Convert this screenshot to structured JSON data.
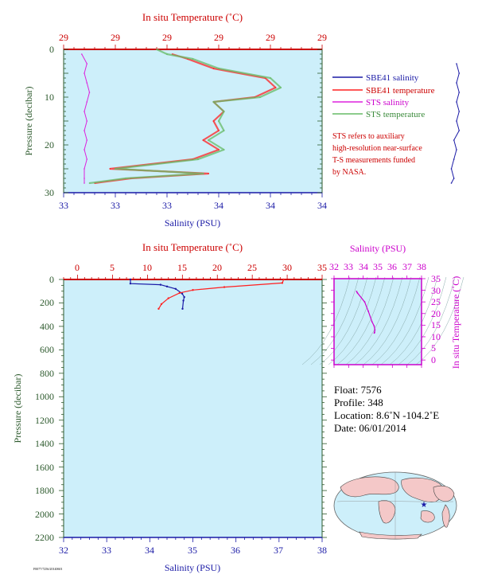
{
  "colors": {
    "plot_bg": "#cdeffa",
    "salinity_axis": "#1a1aa6",
    "temperature_axis": "#cc0000",
    "pressure_axis": "#2d5a2d",
    "inset_axis": "#cc00cc",
    "sbe_salinity": "#1a1aa6",
    "sbe_temperature": "#ff2020",
    "sts_salinity": "#dd22dd",
    "sts_temperature": "#66bb66"
  },
  "top": {
    "xlabel_top": "In situ Temperature (˚C)",
    "xlabel_bottom": "Salinity (PSU)",
    "ylabel": "Pressure (decibar)",
    "temp_ticks": [
      "29",
      "29",
      "29",
      "29",
      "29",
      "29"
    ],
    "sal_ticks": [
      "33",
      "33",
      "33",
      "34",
      "34",
      "34"
    ],
    "pres_ticks": [
      "0",
      "10",
      "20",
      "30"
    ],
    "legend": [
      {
        "name": "SBE41 salinity",
        "color": "#1a1aa6"
      },
      {
        "name": "SBE41 temperature",
        "color": "#ff2020"
      },
      {
        "name": "STS salinity",
        "color": "#dd22dd"
      },
      {
        "name": "STS temperature",
        "color": "#66bb66"
      }
    ],
    "note": [
      "STS refers to auxiliary",
      "high-resolution near-surface",
      "T-S measurements funded",
      "by NASA."
    ]
  },
  "bottom": {
    "xlabel_top": "In situ Temperature (˚C)",
    "xlabel_bottom": "Salinity (PSU)",
    "ylabel": "Pressure (decibar)",
    "temp_ticks": [
      "0",
      "5",
      "10",
      "15",
      "20",
      "25",
      "30",
      "35"
    ],
    "sal_ticks": [
      "32",
      "33",
      "34",
      "35",
      "36",
      "37",
      "38"
    ],
    "pres_ticks": [
      "0",
      "200",
      "400",
      "600",
      "800",
      "1000",
      "1200",
      "1400",
      "1600",
      "1800",
      "2000",
      "2200"
    ]
  },
  "inset": {
    "xlabel": "Salinity (PSU)",
    "ylabel": "In situ Temperature (˚C)",
    "sal_ticks": [
      "32",
      "33",
      "34",
      "35",
      "36",
      "37",
      "38"
    ],
    "temp_ticks": [
      "0",
      "5",
      "10",
      "15",
      "20",
      "25",
      "30",
      "35"
    ]
  },
  "info": {
    "float": "Float: 7576",
    "profile": "Profile: 348",
    "location": "Location: 8.6˚N -104.2˚E",
    "date": "Date: 06/01/2014"
  },
  "footer_code": "F0077/7256/20140601",
  "chart_data": [
    {
      "type": "line",
      "title": "",
      "x_axis_bottom": {
        "label": "Salinity (PSU)",
        "range": [
          33.0,
          34.0
        ]
      },
      "x_axis_top": {
        "label": "In situ Temperature (˚C)",
        "range": [
          28.6,
          29.1
        ]
      },
      "y_axis": {
        "label": "Pressure (decibar)",
        "range": [
          0,
          30
        ],
        "inverted": true
      },
      "series": [
        {
          "name": "SBE41 salinity",
          "x_units": "PSU",
          "points": [
            [
              34.52,
              3
            ],
            [
              34.53,
              5
            ],
            [
              34.52,
              7
            ],
            [
              34.53,
              9
            ],
            [
              34.52,
              11
            ],
            [
              34.53,
              13
            ],
            [
              34.52,
              15
            ],
            [
              34.53,
              17
            ],
            [
              34.51,
              19
            ],
            [
              34.52,
              21
            ],
            [
              34.51,
              23
            ],
            [
              34.5,
              25
            ],
            [
              34.51,
              27
            ],
            [
              34.5,
              28
            ]
          ]
        },
        {
          "name": "SBE41 temperature",
          "x_units": "˚C",
          "points": [
            [
              28.81,
              1
            ],
            [
              28.84,
              2
            ],
            [
              28.89,
              4
            ],
            [
              28.99,
              6
            ],
            [
              29.01,
              8
            ],
            [
              28.97,
              10
            ],
            [
              28.89,
              11
            ],
            [
              28.91,
              13
            ],
            [
              28.89,
              15
            ],
            [
              28.9,
              17
            ],
            [
              28.87,
              19
            ],
            [
              28.9,
              21
            ],
            [
              28.85,
              23
            ],
            [
              28.69,
              25
            ],
            [
              28.88,
              26
            ],
            [
              28.73,
              27
            ],
            [
              28.66,
              28
            ]
          ]
        },
        {
          "name": "STS salinity",
          "x_units": "PSU",
          "points": [
            [
              33.07,
              1
            ],
            [
              33.09,
              3
            ],
            [
              33.08,
              5
            ],
            [
              33.09,
              7
            ],
            [
              33.1,
              9
            ],
            [
              33.09,
              11
            ],
            [
              33.08,
              13
            ],
            [
              33.09,
              15
            ],
            [
              33.08,
              17
            ],
            [
              33.09,
              19
            ],
            [
              33.08,
              21
            ],
            [
              33.09,
              23
            ],
            [
              33.08,
              25
            ],
            [
              33.08,
              27
            ],
            [
              33.08,
              28
            ]
          ]
        },
        {
          "name": "STS temperature",
          "x_units": "˚C",
          "points": [
            [
              28.78,
              0
            ],
            [
              28.8,
              1
            ],
            [
              28.85,
              2
            ],
            [
              28.9,
              4
            ],
            [
              29.0,
              6
            ],
            [
              29.02,
              8
            ],
            [
              28.98,
              10
            ],
            [
              28.89,
              11
            ],
            [
              28.91,
              13
            ],
            [
              28.9,
              15
            ],
            [
              28.91,
              17
            ],
            [
              28.88,
              19
            ],
            [
              28.91,
              21
            ],
            [
              28.86,
              23
            ],
            [
              28.7,
              25
            ],
            [
              28.87,
              26
            ],
            [
              28.72,
              27
            ],
            [
              28.65,
              28
            ]
          ]
        }
      ]
    },
    {
      "type": "line",
      "title": "",
      "x_axis_bottom": {
        "label": "Salinity (PSU)",
        "range": [
          32,
          38
        ]
      },
      "x_axis_top": {
        "label": "In situ Temperature (˚C)",
        "range": [
          -2,
          35
        ]
      },
      "y_axis": {
        "label": "Pressure (decibar)",
        "range": [
          0,
          2200
        ],
        "inverted": true
      },
      "series": [
        {
          "name": "SBE41 salinity",
          "x_units": "PSU",
          "points": [
            [
              33.55,
              0
            ],
            [
              33.55,
              35
            ],
            [
              34.25,
              45
            ],
            [
              34.4,
              60
            ],
            [
              34.6,
              80
            ],
            [
              34.75,
              120
            ],
            [
              34.8,
              150
            ],
            [
              34.78,
              180
            ],
            [
              34.76,
              250
            ]
          ]
        },
        {
          "name": "SBE41 temperature",
          "x_units": "˚C",
          "points": [
            [
              29.5,
              0
            ],
            [
              29.3,
              30
            ],
            [
              21.0,
              65
            ],
            [
              16.5,
              90
            ],
            [
              14.6,
              115
            ],
            [
              13.0,
              160
            ],
            [
              12.0,
              210
            ],
            [
              11.6,
              250
            ]
          ]
        }
      ]
    },
    {
      "type": "line",
      "title": "",
      "x_axis": {
        "label": "Salinity (PSU)",
        "range": [
          32,
          38
        ]
      },
      "y_axis": {
        "label": "In situ Temperature (˚C)",
        "range": [
          -2,
          35
        ]
      },
      "series": [
        {
          "name": "SBE41 T-S",
          "points": [
            [
              33.55,
              29.5
            ],
            [
              33.6,
              28.9
            ],
            [
              34.1,
              25.0
            ],
            [
              34.35,
              21.0
            ],
            [
              34.6,
              16.5
            ],
            [
              34.75,
              14.6
            ],
            [
              34.8,
              13.0
            ],
            [
              34.78,
              12.0
            ],
            [
              34.76,
              11.6
            ]
          ]
        }
      ]
    }
  ]
}
